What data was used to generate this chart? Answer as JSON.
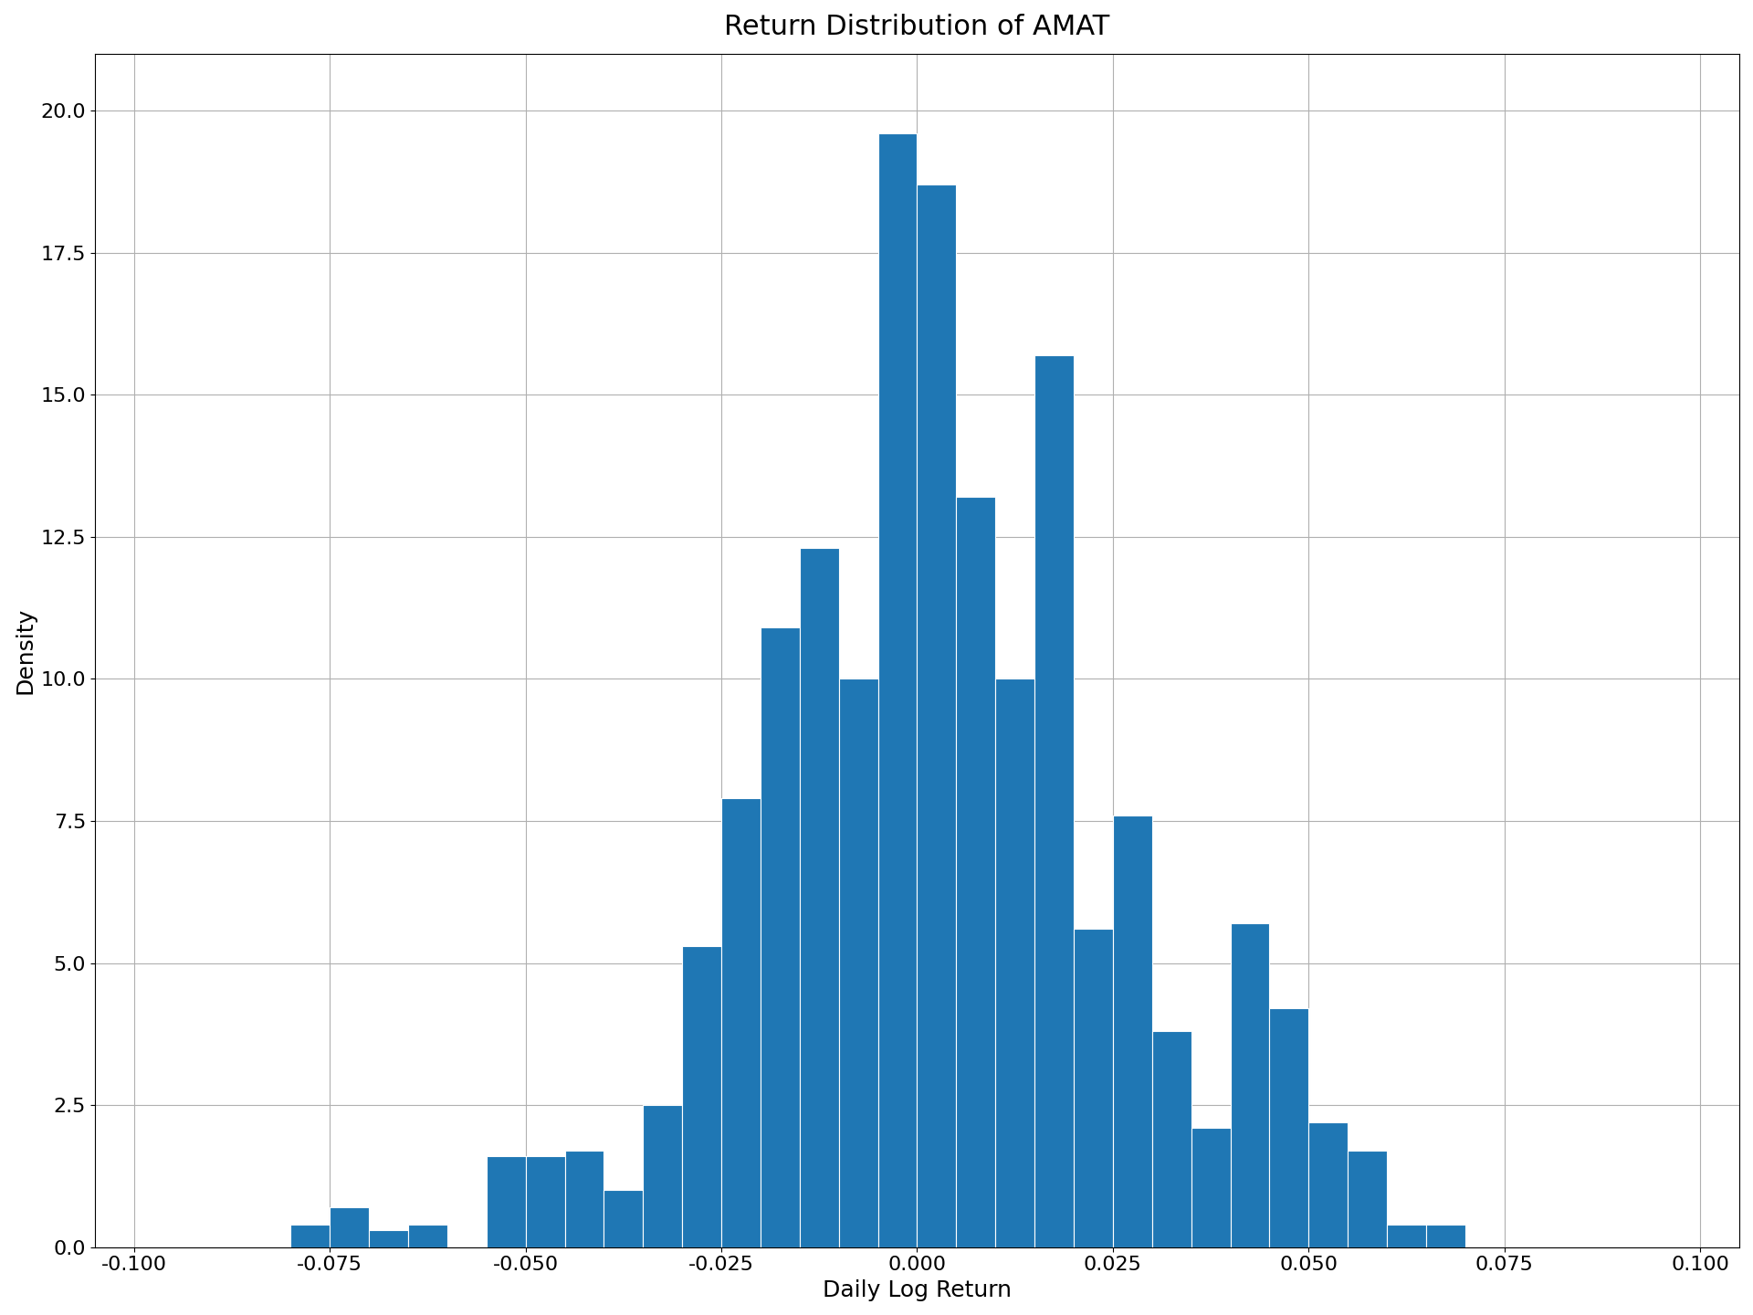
{
  "title": "Return Distribution of AMAT",
  "xlabel": "Daily Log Return",
  "ylabel": "Density",
  "bar_color": "#1f77b4",
  "xlim": [
    -0.105,
    0.105
  ],
  "ylim": [
    0,
    21.0
  ],
  "xticks": [
    -0.1,
    -0.075,
    -0.05,
    -0.025,
    0.0,
    0.025,
    0.05,
    0.075,
    0.1
  ],
  "yticks": [
    0.0,
    2.5,
    5.0,
    7.5,
    10.0,
    12.5,
    15.0,
    17.5,
    20.0
  ],
  "title_fontsize": 22,
  "label_fontsize": 18,
  "tick_fontsize": 16,
  "bin_width": 0.005,
  "bins_left_edges": [
    -0.1,
    -0.095,
    -0.09,
    -0.085,
    -0.08,
    -0.075,
    -0.07,
    -0.065,
    -0.06,
    -0.055,
    -0.05,
    -0.045,
    -0.04,
    -0.035,
    -0.03,
    -0.025,
    -0.02,
    -0.015,
    -0.01,
    -0.005,
    0.0,
    0.005,
    0.01,
    0.015,
    0.02,
    0.025,
    0.03,
    0.035,
    0.04,
    0.045,
    0.05,
    0.055,
    0.06,
    0.065,
    0.07,
    0.075,
    0.08,
    0.085,
    0.09,
    0.095
  ],
  "densities": [
    0.0,
    0.0,
    0.0,
    0.0,
    0.4,
    0.7,
    0.3,
    0.4,
    0.0,
    1.6,
    1.6,
    1.7,
    1.0,
    2.5,
    5.3,
    7.9,
    10.9,
    12.3,
    10.0,
    19.6,
    18.7,
    13.2,
    10.0,
    15.7,
    5.6,
    7.6,
    3.8,
    2.1,
    5.7,
    4.2,
    2.2,
    1.7,
    0.4,
    0.4,
    0.0,
    0.0,
    0.0,
    0.0,
    0.0,
    0.0
  ],
  "grid_color": "#b0b0b0",
  "grid_linewidth": 0.8,
  "background_color": "white"
}
